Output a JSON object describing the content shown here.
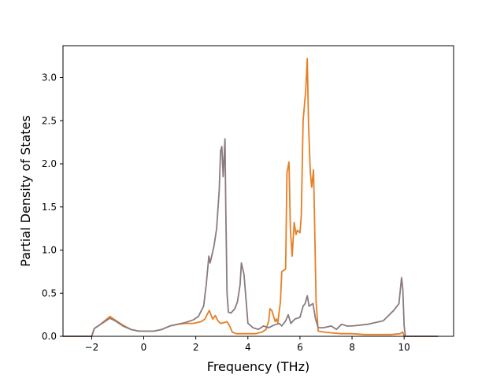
{
  "chart_data": {
    "type": "line",
    "title": "",
    "xlabel": "Frequency (THz)",
    "ylabel": "Partial Density of States",
    "xlim": [
      -3.1,
      11.9
    ],
    "ylim": [
      0,
      3.37
    ],
    "xticks": [
      -2,
      0,
      2,
      4,
      6,
      8,
      10
    ],
    "yticks": [
      0.0,
      0.5,
      1.0,
      1.5,
      2.0,
      2.5,
      3.0
    ],
    "xtick_labels": [
      "−2",
      "0",
      "2",
      "4",
      "6",
      "8",
      "10"
    ],
    "ytick_labels": [
      "0.0",
      "0.5",
      "1.0",
      "1.5",
      "2.0",
      "2.5",
      "3.0"
    ],
    "grid": false,
    "legend": "none",
    "series": [
      {
        "color": "#e87e24",
        "points": [
          [
            -3.1,
            0.0
          ],
          [
            -2.2,
            0.0
          ],
          [
            -2.0,
            0.0
          ],
          [
            -1.9,
            0.09
          ],
          [
            -1.7,
            0.13
          ],
          [
            -1.5,
            0.18
          ],
          [
            -1.3,
            0.23
          ],
          [
            -1.1,
            0.19
          ],
          [
            -0.8,
            0.13
          ],
          [
            -0.5,
            0.08
          ],
          [
            -0.2,
            0.06
          ],
          [
            0.0,
            0.06
          ],
          [
            0.4,
            0.06
          ],
          [
            0.7,
            0.08
          ],
          [
            1.0,
            0.12
          ],
          [
            1.3,
            0.14
          ],
          [
            1.6,
            0.15
          ],
          [
            1.9,
            0.15
          ],
          [
            2.2,
            0.17
          ],
          [
            2.35,
            0.2
          ],
          [
            2.45,
            0.26
          ],
          [
            2.52,
            0.3
          ],
          [
            2.58,
            0.25
          ],
          [
            2.65,
            0.2
          ],
          [
            2.75,
            0.24
          ],
          [
            2.85,
            0.18
          ],
          [
            2.95,
            0.15
          ],
          [
            3.1,
            0.16
          ],
          [
            3.2,
            0.17
          ],
          [
            3.3,
            0.12
          ],
          [
            3.4,
            0.05
          ],
          [
            3.55,
            0.03
          ],
          [
            3.8,
            0.03
          ],
          [
            4.0,
            0.03
          ],
          [
            4.3,
            0.03
          ],
          [
            4.55,
            0.05
          ],
          [
            4.7,
            0.08
          ],
          [
            4.8,
            0.18
          ],
          [
            4.85,
            0.32
          ],
          [
            4.92,
            0.3
          ],
          [
            5.0,
            0.22
          ],
          [
            5.05,
            0.17
          ],
          [
            5.1,
            0.2
          ],
          [
            5.15,
            0.16
          ],
          [
            5.25,
            0.4
          ],
          [
            5.3,
            0.75
          ],
          [
            5.45,
            0.78
          ],
          [
            5.5,
            1.9
          ],
          [
            5.58,
            2.02
          ],
          [
            5.63,
            1.25
          ],
          [
            5.7,
            0.93
          ],
          [
            5.78,
            1.32
          ],
          [
            5.85,
            1.18
          ],
          [
            5.9,
            1.23
          ],
          [
            6.0,
            1.2
          ],
          [
            6.05,
            1.4
          ],
          [
            6.12,
            2.5
          ],
          [
            6.22,
            2.85
          ],
          [
            6.28,
            3.22
          ],
          [
            6.33,
            2.45
          ],
          [
            6.4,
            1.9
          ],
          [
            6.45,
            1.73
          ],
          [
            6.52,
            1.93
          ],
          [
            6.55,
            1.5
          ],
          [
            6.62,
            0.4
          ],
          [
            6.7,
            0.06
          ],
          [
            6.9,
            0.05
          ],
          [
            7.2,
            0.04
          ],
          [
            7.6,
            0.03
          ],
          [
            8.0,
            0.03
          ],
          [
            8.5,
            0.02
          ],
          [
            9.0,
            0.02
          ],
          [
            9.5,
            0.02
          ],
          [
            9.85,
            0.03
          ],
          [
            9.95,
            0.05
          ],
          [
            10.0,
            0.0
          ],
          [
            10.5,
            0.0
          ],
          [
            11.3,
            0.0
          ]
        ]
      },
      {
        "color": "#8a7b7d",
        "points": [
          [
            -3.1,
            0.0
          ],
          [
            -2.2,
            0.0
          ],
          [
            -2.0,
            0.0
          ],
          [
            -1.9,
            0.09
          ],
          [
            -1.7,
            0.13
          ],
          [
            -1.5,
            0.17
          ],
          [
            -1.3,
            0.21
          ],
          [
            -1.1,
            0.18
          ],
          [
            -0.8,
            0.12
          ],
          [
            -0.5,
            0.08
          ],
          [
            -0.2,
            0.06
          ],
          [
            0.0,
            0.06
          ],
          [
            0.4,
            0.06
          ],
          [
            0.7,
            0.08
          ],
          [
            1.0,
            0.12
          ],
          [
            1.3,
            0.14
          ],
          [
            1.6,
            0.16
          ],
          [
            1.9,
            0.19
          ],
          [
            2.1,
            0.23
          ],
          [
            2.3,
            0.35
          ],
          [
            2.4,
            0.6
          ],
          [
            2.5,
            0.93
          ],
          [
            2.55,
            0.85
          ],
          [
            2.62,
            0.94
          ],
          [
            2.7,
            1.05
          ],
          [
            2.8,
            1.25
          ],
          [
            2.9,
            1.7
          ],
          [
            2.95,
            2.15
          ],
          [
            3.0,
            2.2
          ],
          [
            3.05,
            1.85
          ],
          [
            3.12,
            2.29
          ],
          [
            3.15,
            1.5
          ],
          [
            3.2,
            0.5
          ],
          [
            3.25,
            0.28
          ],
          [
            3.35,
            0.27
          ],
          [
            3.5,
            0.32
          ],
          [
            3.6,
            0.4
          ],
          [
            3.7,
            0.6
          ],
          [
            3.75,
            0.85
          ],
          [
            3.85,
            0.72
          ],
          [
            3.95,
            0.35
          ],
          [
            4.0,
            0.15
          ],
          [
            4.2,
            0.1
          ],
          [
            4.4,
            0.08
          ],
          [
            4.6,
            0.12
          ],
          [
            4.8,
            0.1
          ],
          [
            5.0,
            0.13
          ],
          [
            5.2,
            0.15
          ],
          [
            5.3,
            0.12
          ],
          [
            5.45,
            0.18
          ],
          [
            5.55,
            0.25
          ],
          [
            5.65,
            0.15
          ],
          [
            5.8,
            0.2
          ],
          [
            6.0,
            0.22
          ],
          [
            6.12,
            0.35
          ],
          [
            6.2,
            0.38
          ],
          [
            6.28,
            0.47
          ],
          [
            6.35,
            0.35
          ],
          [
            6.5,
            0.38
          ],
          [
            6.6,
            0.2
          ],
          [
            6.7,
            0.1
          ],
          [
            6.9,
            0.1
          ],
          [
            7.2,
            0.12
          ],
          [
            7.4,
            0.08
          ],
          [
            7.6,
            0.14
          ],
          [
            7.8,
            0.12
          ],
          [
            8.0,
            0.12
          ],
          [
            8.3,
            0.13
          ],
          [
            8.6,
            0.14
          ],
          [
            8.9,
            0.16
          ],
          [
            9.2,
            0.18
          ],
          [
            9.4,
            0.24
          ],
          [
            9.6,
            0.3
          ],
          [
            9.8,
            0.38
          ],
          [
            9.9,
            0.68
          ],
          [
            9.95,
            0.55
          ],
          [
            10.0,
            0.12
          ],
          [
            10.05,
            0.0
          ],
          [
            10.5,
            0.0
          ],
          [
            11.3,
            0.0
          ]
        ]
      }
    ]
  }
}
